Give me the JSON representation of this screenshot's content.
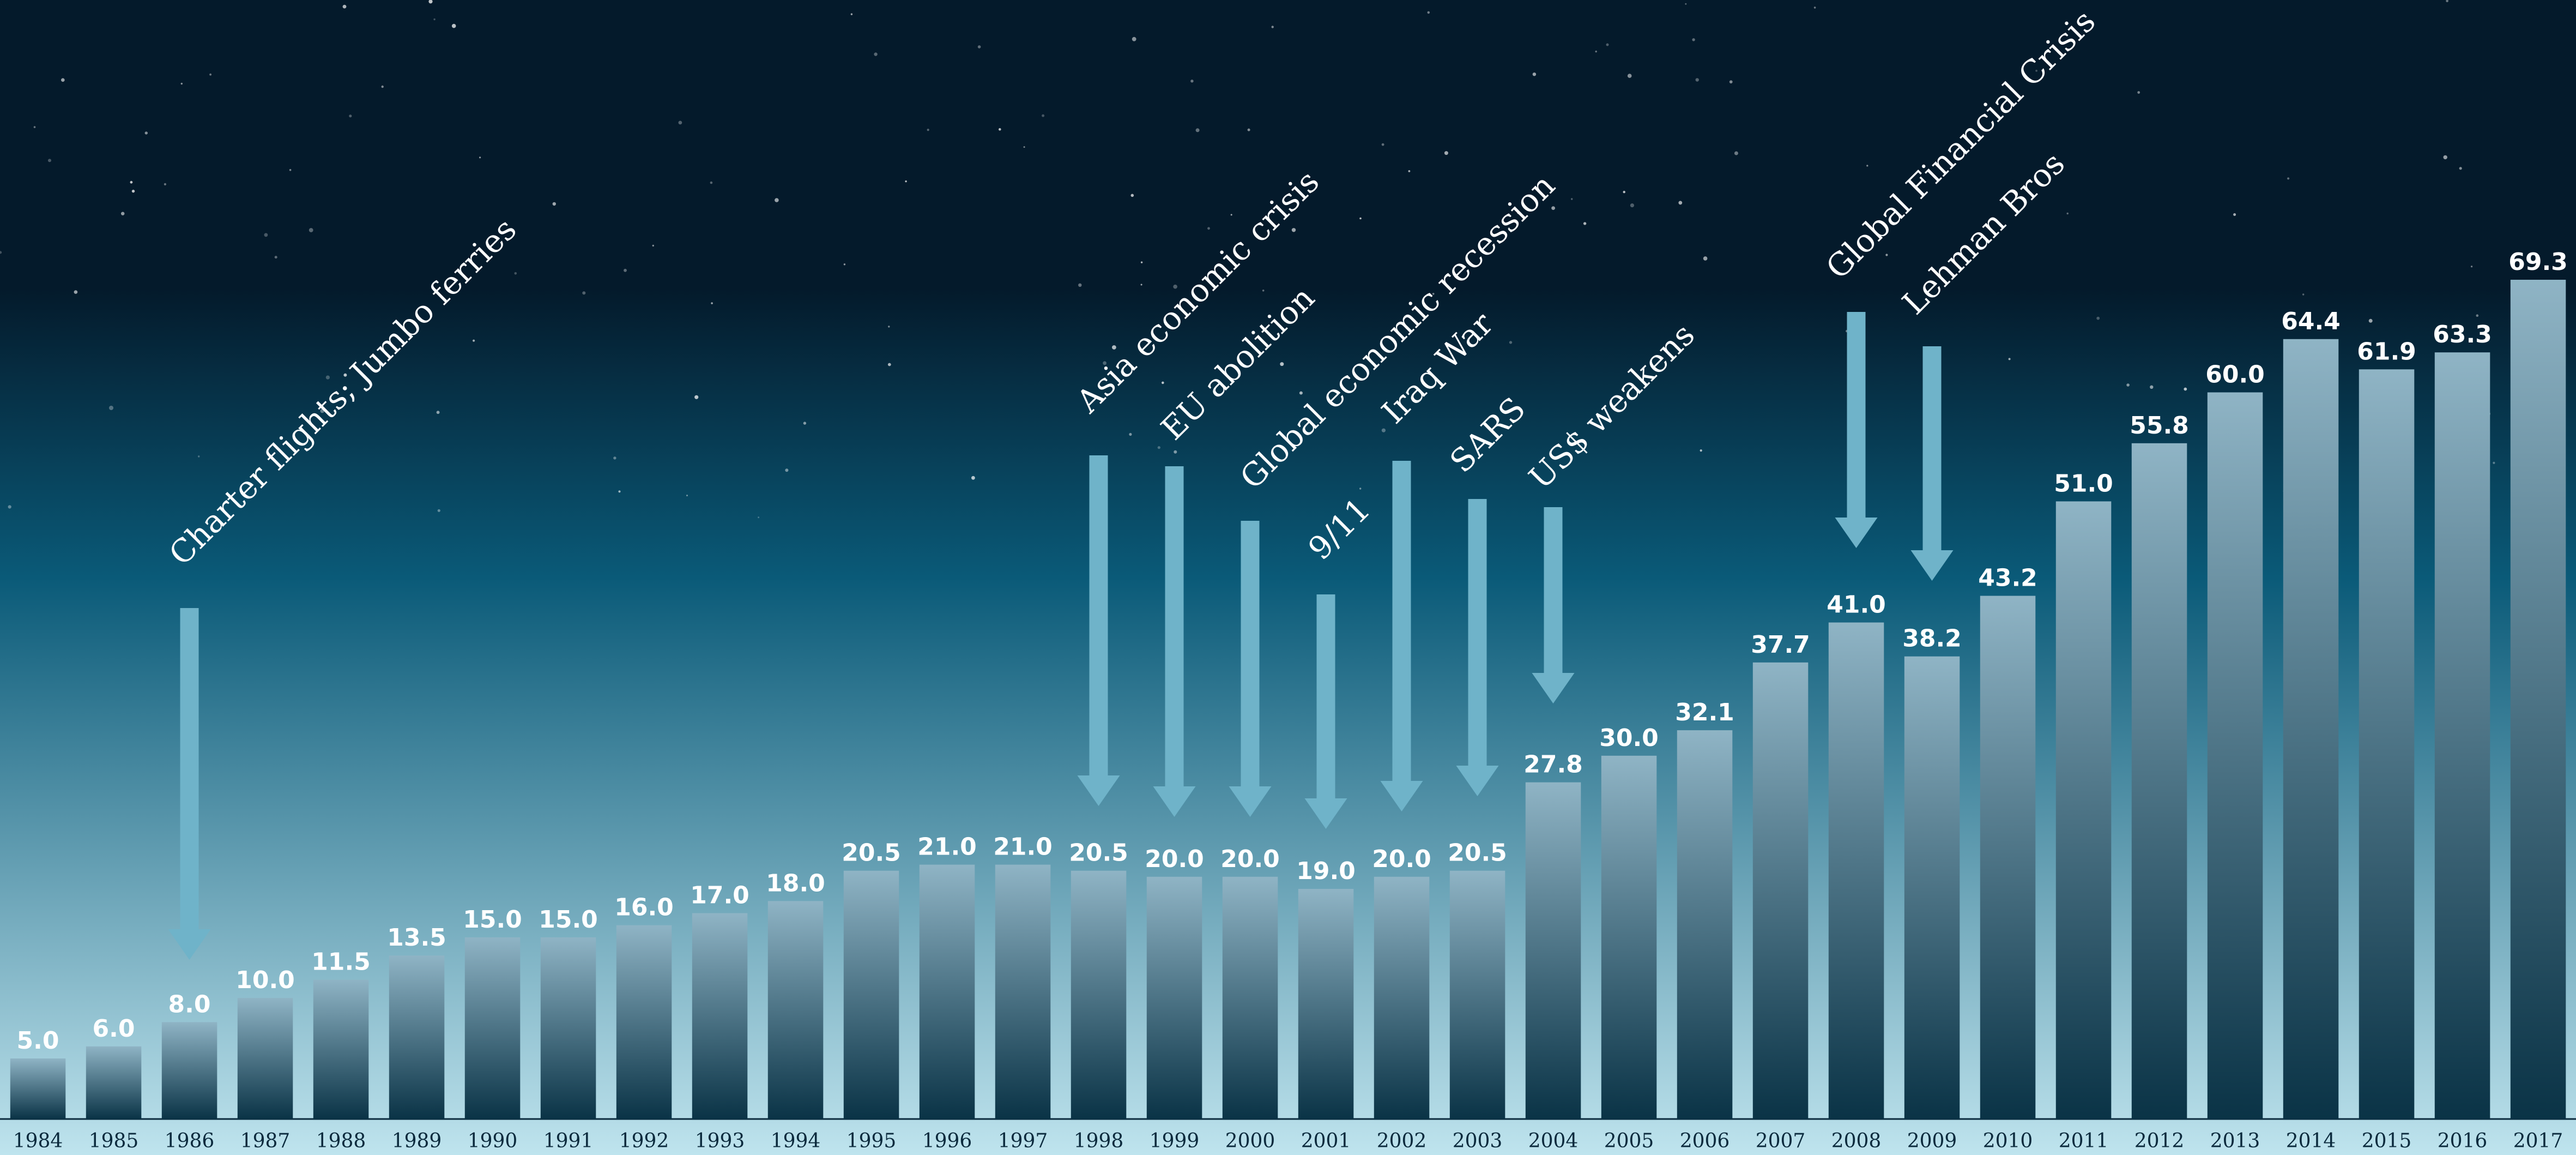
{
  "chart_data": {
    "type": "bar",
    "title": "",
    "xlabel": "",
    "ylabel": "",
    "ylim": [
      0,
      69.3
    ],
    "grid": false,
    "legend": "none",
    "categories": [
      "1984",
      "1985",
      "1986",
      "1987",
      "1988",
      "1989",
      "1990",
      "1991",
      "1992",
      "1993",
      "1994",
      "1995",
      "1996",
      "1997",
      "1998",
      "1999",
      "2000",
      "2001",
      "2002",
      "2003",
      "2004",
      "2005",
      "2006",
      "2007",
      "2008",
      "2009",
      "2010",
      "2011",
      "2012",
      "2013",
      "2014",
      "2015",
      "2016",
      "2017"
    ],
    "values": [
      5.0,
      6.0,
      8.0,
      10.0,
      11.5,
      13.5,
      15.0,
      15.0,
      16.0,
      17.0,
      18.0,
      20.5,
      21.0,
      21.0,
      20.5,
      20.0,
      20.0,
      19.0,
      20.0,
      20.5,
      27.8,
      30.0,
      32.1,
      37.7,
      41.0,
      38.2,
      43.2,
      51.0,
      55.8,
      60.0,
      64.4,
      61.9,
      63.3,
      69.3
    ],
    "value_labels": [
      "5.0",
      "6.0",
      "8.0",
      "10.0",
      "11.5",
      "13.5",
      "15.0",
      "15.0",
      "16.0",
      "17.0",
      "18.0",
      "20.5",
      "21.0",
      "21.0",
      "20.5",
      "20.0",
      "20.0",
      "19.0",
      "20.0",
      "20.5",
      "27.8",
      "30.0",
      "32.1",
      "37.7",
      "41.0",
      "38.2",
      "43.2",
      "51.0",
      "55.8",
      "60.0",
      "64.4",
      "61.9",
      "63.3",
      "69.3"
    ],
    "annotations": [
      {
        "text": "Charter flights; Jumbo ferries",
        "year": "1986"
      },
      {
        "text": "Asia economic crisis",
        "year": "1998"
      },
      {
        "text": "EU abolition",
        "year": "1999"
      },
      {
        "text": "Global economic recession",
        "year": "2000"
      },
      {
        "text": "9/11",
        "year": "2001"
      },
      {
        "text": "Iraq War",
        "year": "2002"
      },
      {
        "text": "SARS",
        "year": "2003"
      },
      {
        "text": "US$ weakens",
        "year": "2004"
      },
      {
        "text": "Global Financial Crisis",
        "year": "2008"
      },
      {
        "text": "Lehman Bros",
        "year": "2009"
      }
    ]
  },
  "colors": {
    "sky_top": "#041a2b",
    "sky_mid": "#0a5a78",
    "sky_bottom": "#bfe4ee",
    "bar_top": "#8fb4c5",
    "bar_bottom": "#0a3346",
    "arrow": "#6fb3c9",
    "value_text": "#ffffff",
    "annotation_text": "#ffffff",
    "axis_text": "#0b2a3d"
  }
}
